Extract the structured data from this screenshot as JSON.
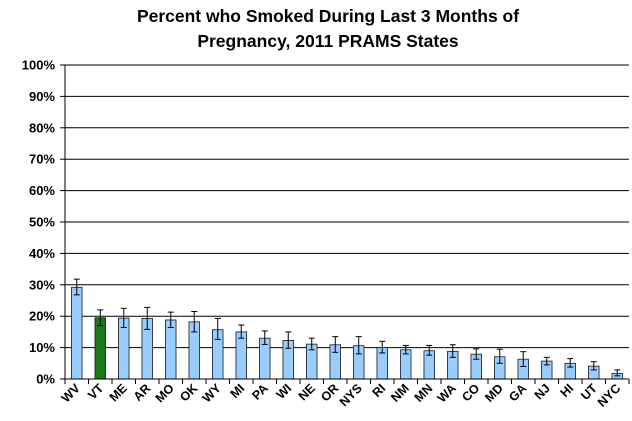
{
  "chart_data": {
    "type": "bar",
    "title": "Percent who Smoked During Last 3 Months of Pregnancy, 2011 PRAMS States",
    "title_lines": [
      "Percent who Smoked During Last 3 Months of",
      "Pregnancy, 2011 PRAMS States"
    ],
    "xlabel": "",
    "ylabel": "",
    "ylim": [
      0,
      100
    ],
    "yticks": [
      "0%",
      "10%",
      "20%",
      "30%",
      "40%",
      "50%",
      "60%",
      "70%",
      "80%",
      "90%",
      "100%"
    ],
    "grid": true,
    "legend": "none",
    "categories": [
      "WV",
      "VT",
      "ME",
      "AR",
      "MO",
      "OK",
      "WY",
      "MI",
      "PA",
      "WI",
      "NE",
      "OR",
      "NYS",
      "RI",
      "NM",
      "MN",
      "WA",
      "CO",
      "MD",
      "GA",
      "NJ",
      "HI",
      "UT",
      "NYC"
    ],
    "values": [
      29.2,
      19.5,
      19.4,
      19.3,
      18.8,
      18.2,
      15.7,
      15.0,
      13.0,
      12.3,
      11.1,
      10.9,
      10.6,
      10.0,
      9.3,
      9.0,
      8.8,
      7.9,
      7.1,
      6.3,
      5.7,
      5.0,
      4.1,
      1.8
    ],
    "error_low": [
      26.8,
      17.0,
      16.4,
      15.8,
      16.4,
      15.0,
      12.6,
      13.0,
      11.0,
      9.8,
      9.3,
      8.5,
      8.0,
      8.3,
      8.0,
      7.6,
      6.9,
      6.3,
      5.0,
      4.0,
      4.5,
      3.8,
      2.9,
      1.0
    ],
    "error_high": [
      31.8,
      22.0,
      22.5,
      22.8,
      21.3,
      21.5,
      19.3,
      17.2,
      15.3,
      15.0,
      13.0,
      13.5,
      13.5,
      12.0,
      10.7,
      10.7,
      10.9,
      9.6,
      9.5,
      8.7,
      6.9,
      6.5,
      5.5,
      2.9
    ],
    "highlight_category": "VT",
    "colors": {
      "bar": "#99ccff",
      "highlight": "#1a7a1a",
      "bar_stroke": "#1a1a1a",
      "grid": "#000000",
      "error": "#000000"
    }
  }
}
